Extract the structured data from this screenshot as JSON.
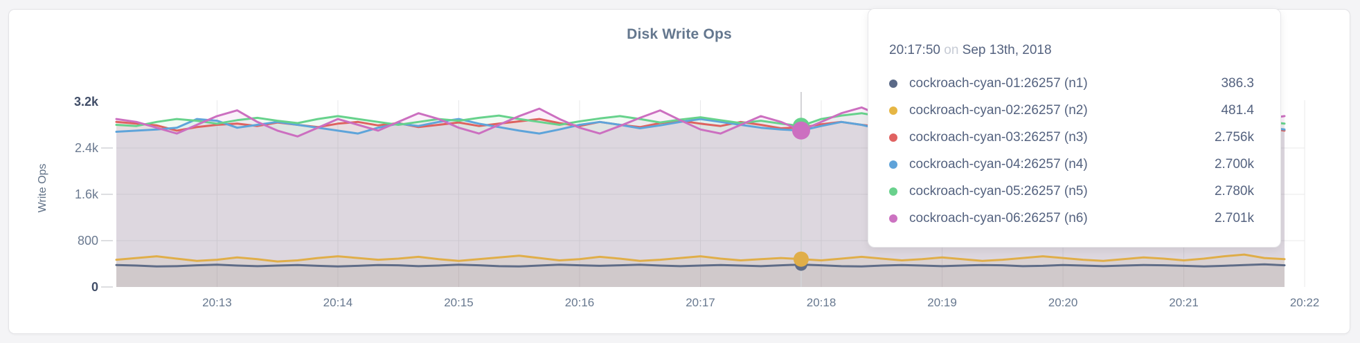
{
  "page": {
    "title": "Disk Write Ops"
  },
  "tooltip": {
    "time": "20:17:50",
    "connector": "on",
    "date": "Sep 13th, 2018",
    "rows": [
      {
        "label": "cockroach-cyan-01:26257 (n1)",
        "value": "386.3",
        "color": "#5a6987"
      },
      {
        "label": "cockroach-cyan-02:26257 (n2)",
        "value": "481.4",
        "color": "#e6b644"
      },
      {
        "label": "cockroach-cyan-03:26257 (n3)",
        "value": "2.756k",
        "color": "#e06261"
      },
      {
        "label": "cockroach-cyan-04:26257 (n4)",
        "value": "2.700k",
        "color": "#5fa3d9"
      },
      {
        "label": "cockroach-cyan-05:26257 (n5)",
        "value": "2.780k",
        "color": "#69d18c"
      },
      {
        "label": "cockroach-cyan-06:26257 (n6)",
        "value": "2.701k",
        "color": "#cc72c1"
      }
    ]
  },
  "chart_data": {
    "type": "line",
    "title": "Disk Write Ops",
    "xlabel": "",
    "ylabel": "Write Ops",
    "grid": true,
    "legend_position": "tooltip",
    "ylim": [
      0,
      3400
    ],
    "x_start": "20:12:10",
    "x_interval_seconds": 10,
    "x_ticks": [
      "20:13",
      "20:14",
      "20:15",
      "20:16",
      "20:17",
      "20:18",
      "20:19",
      "20:20",
      "20:21",
      "20:22"
    ],
    "y_ticks": [
      {
        "label": "0",
        "value": 0
      },
      {
        "label": "800",
        "value": 800
      },
      {
        "label": "1.6k",
        "value": 1600
      },
      {
        "label": "2.4k",
        "value": 2400
      },
      {
        "label": "3.2k",
        "value": 3200
      }
    ],
    "hover": {
      "index": 34,
      "time": "20:17:50",
      "dot_radii": [
        9,
        11,
        12,
        11,
        12,
        13
      ]
    },
    "fill_opacity": 0.1,
    "series": [
      {
        "name": "cockroach-cyan-01:26257 (n1)",
        "color": "#5f6c87",
        "values": [
          380,
          370,
          355,
          360,
          375,
          385,
          370,
          360,
          370,
          380,
          365,
          355,
          365,
          380,
          375,
          360,
          370,
          385,
          375,
          360,
          355,
          370,
          385,
          375,
          365,
          375,
          385,
          370,
          360,
          370,
          380,
          370,
          360,
          375,
          386.3,
          375,
          360,
          355,
          370,
          380,
          370,
          360,
          370,
          380,
          375,
          360,
          365,
          380,
          370,
          360,
          370,
          380,
          375,
          365,
          355,
          365,
          380,
          390,
          375
        ]
      },
      {
        "name": "cockroach-cyan-02:26257 (n2)",
        "color": "#e0ae49",
        "values": [
          470,
          500,
          530,
          490,
          450,
          470,
          510,
          480,
          440,
          460,
          500,
          530,
          500,
          470,
          490,
          520,
          480,
          450,
          480,
          510,
          540,
          500,
          460,
          480,
          520,
          490,
          450,
          470,
          500,
          530,
          490,
          460,
          480,
          500,
          481.4,
          460,
          490,
          520,
          490,
          460,
          480,
          510,
          480,
          450,
          470,
          500,
          530,
          500,
          470,
          450,
          480,
          510,
          490,
          460,
          490,
          530,
          560,
          500,
          480
        ]
      },
      {
        "name": "cockroach-cyan-03:26257 (n3)",
        "color": "#de625f",
        "values": [
          2850,
          2820,
          2790,
          2700,
          2760,
          2800,
          2820,
          2780,
          2840,
          2800,
          2760,
          2820,
          2850,
          2790,
          2830,
          2760,
          2800,
          2840,
          2780,
          2820,
          2860,
          2900,
          2830,
          2780,
          2850,
          2800,
          2760,
          2830,
          2870,
          2820,
          2780,
          2850,
          2800,
          2740,
          2756,
          2810,
          2850,
          2800,
          2760,
          2820,
          2780,
          2850,
          2890,
          2820,
          2770,
          2810,
          2850,
          2790,
          2830,
          2780,
          2820,
          2860,
          2800,
          2750,
          2800,
          2840,
          2790,
          2750,
          2700
        ]
      },
      {
        "name": "cockroach-cyan-04:26257 (n4)",
        "color": "#5ea4da",
        "values": [
          2680,
          2700,
          2720,
          2750,
          2900,
          2870,
          2750,
          2800,
          2850,
          2800,
          2750,
          2700,
          2650,
          2750,
          2820,
          2780,
          2850,
          2900,
          2820,
          2760,
          2700,
          2650,
          2720,
          2800,
          2850,
          2800,
          2740,
          2790,
          2850,
          2900,
          2850,
          2800,
          2750,
          2720,
          2700,
          2780,
          2850,
          2800,
          2720,
          2660,
          2750,
          2820,
          2860,
          2800,
          2740,
          2700,
          2760,
          2830,
          2780,
          2720,
          2780,
          2840,
          2800,
          2750,
          2700,
          2650,
          2700,
          2760,
          2720
        ]
      },
      {
        "name": "cockroach-cyan-05:26257 (n5)",
        "color": "#67d28c",
        "values": [
          2800,
          2780,
          2850,
          2900,
          2870,
          2820,
          2880,
          2920,
          2870,
          2830,
          2900,
          2950,
          2900,
          2850,
          2800,
          2850,
          2900,
          2870,
          2920,
          2960,
          2900,
          2850,
          2800,
          2860,
          2910,
          2950,
          2900,
          2840,
          2890,
          2930,
          2880,
          2830,
          2870,
          2820,
          2780,
          2900,
          2960,
          3000,
          2940,
          2880,
          2840,
          2900,
          2850,
          2800,
          2860,
          2920,
          2880,
          2830,
          2780,
          2840,
          2900,
          2940,
          2890,
          2840,
          2800,
          2850,
          2900,
          2860,
          2820
        ]
      },
      {
        "name": "cockroach-cyan-06:26257 (n6)",
        "color": "#cc6fc0",
        "values": [
          2900,
          2850,
          2750,
          2650,
          2800,
          2950,
          3050,
          2850,
          2700,
          2600,
          2750,
          2900,
          2800,
          2700,
          2850,
          3000,
          2900,
          2750,
          2650,
          2800,
          2950,
          3080,
          2900,
          2750,
          2650,
          2780,
          2920,
          3050,
          2880,
          2720,
          2650,
          2800,
          2950,
          2850,
          2701,
          2850,
          3000,
          3100,
          2950,
          2800,
          2700,
          2850,
          3000,
          2900,
          2750,
          2680,
          2820,
          2960,
          2880,
          2750,
          2700,
          2850,
          3000,
          3080,
          2950,
          2850,
          2750,
          2900,
          2950
        ]
      }
    ]
  }
}
